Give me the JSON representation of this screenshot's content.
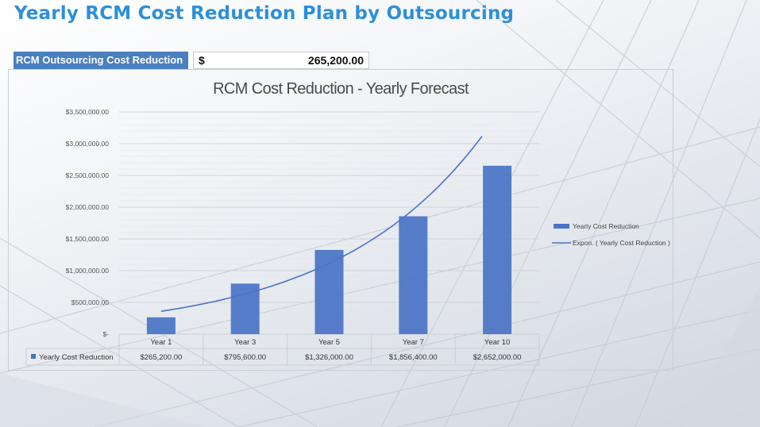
{
  "page_title": "Yearly RCM Cost Reduction Plan by Outsourcing",
  "summary": {
    "label": "RCM Outsourcing Cost Reduction",
    "currency": "$",
    "value": "265,200.00"
  },
  "colors": {
    "title": "#2e8fd8",
    "bar": "#4a73c5",
    "label_bg": "#4a7fc0"
  },
  "chart_data": {
    "type": "bar",
    "title": "RCM Cost Reduction - Yearly Forecast",
    "categories": [
      "Year 1",
      "Year 3",
      "Year 5",
      "Year 7",
      "Year 10"
    ],
    "series": [
      {
        "name": "Yearly Cost Reduction",
        "values": [
          265200,
          795600,
          1326000,
          1856400,
          2652000
        ],
        "labels": [
          "$265,200.00",
          "$795,600.00",
          "$1,326,000.00",
          "$1,856,400.00",
          "$2,652,000.00"
        ]
      }
    ],
    "trendline": {
      "name": "Expon. ( Yearly Cost Reduction )",
      "type": "exponential",
      "values": [
        360000,
        580000,
        940000,
        1500000,
        2450000
      ],
      "end_value": 3170000
    },
    "y_ticks": [
      "$-",
      "$500,000.00",
      "$1,000,000.00",
      "$1,500,000.00",
      "$2,000,000.00",
      "$2,500,000.00",
      "$3,000,000.00",
      "$3,500,000.00"
    ],
    "ylim": [
      0,
      3500000
    ],
    "grid": true,
    "legend": "right",
    "data_table": true
  }
}
